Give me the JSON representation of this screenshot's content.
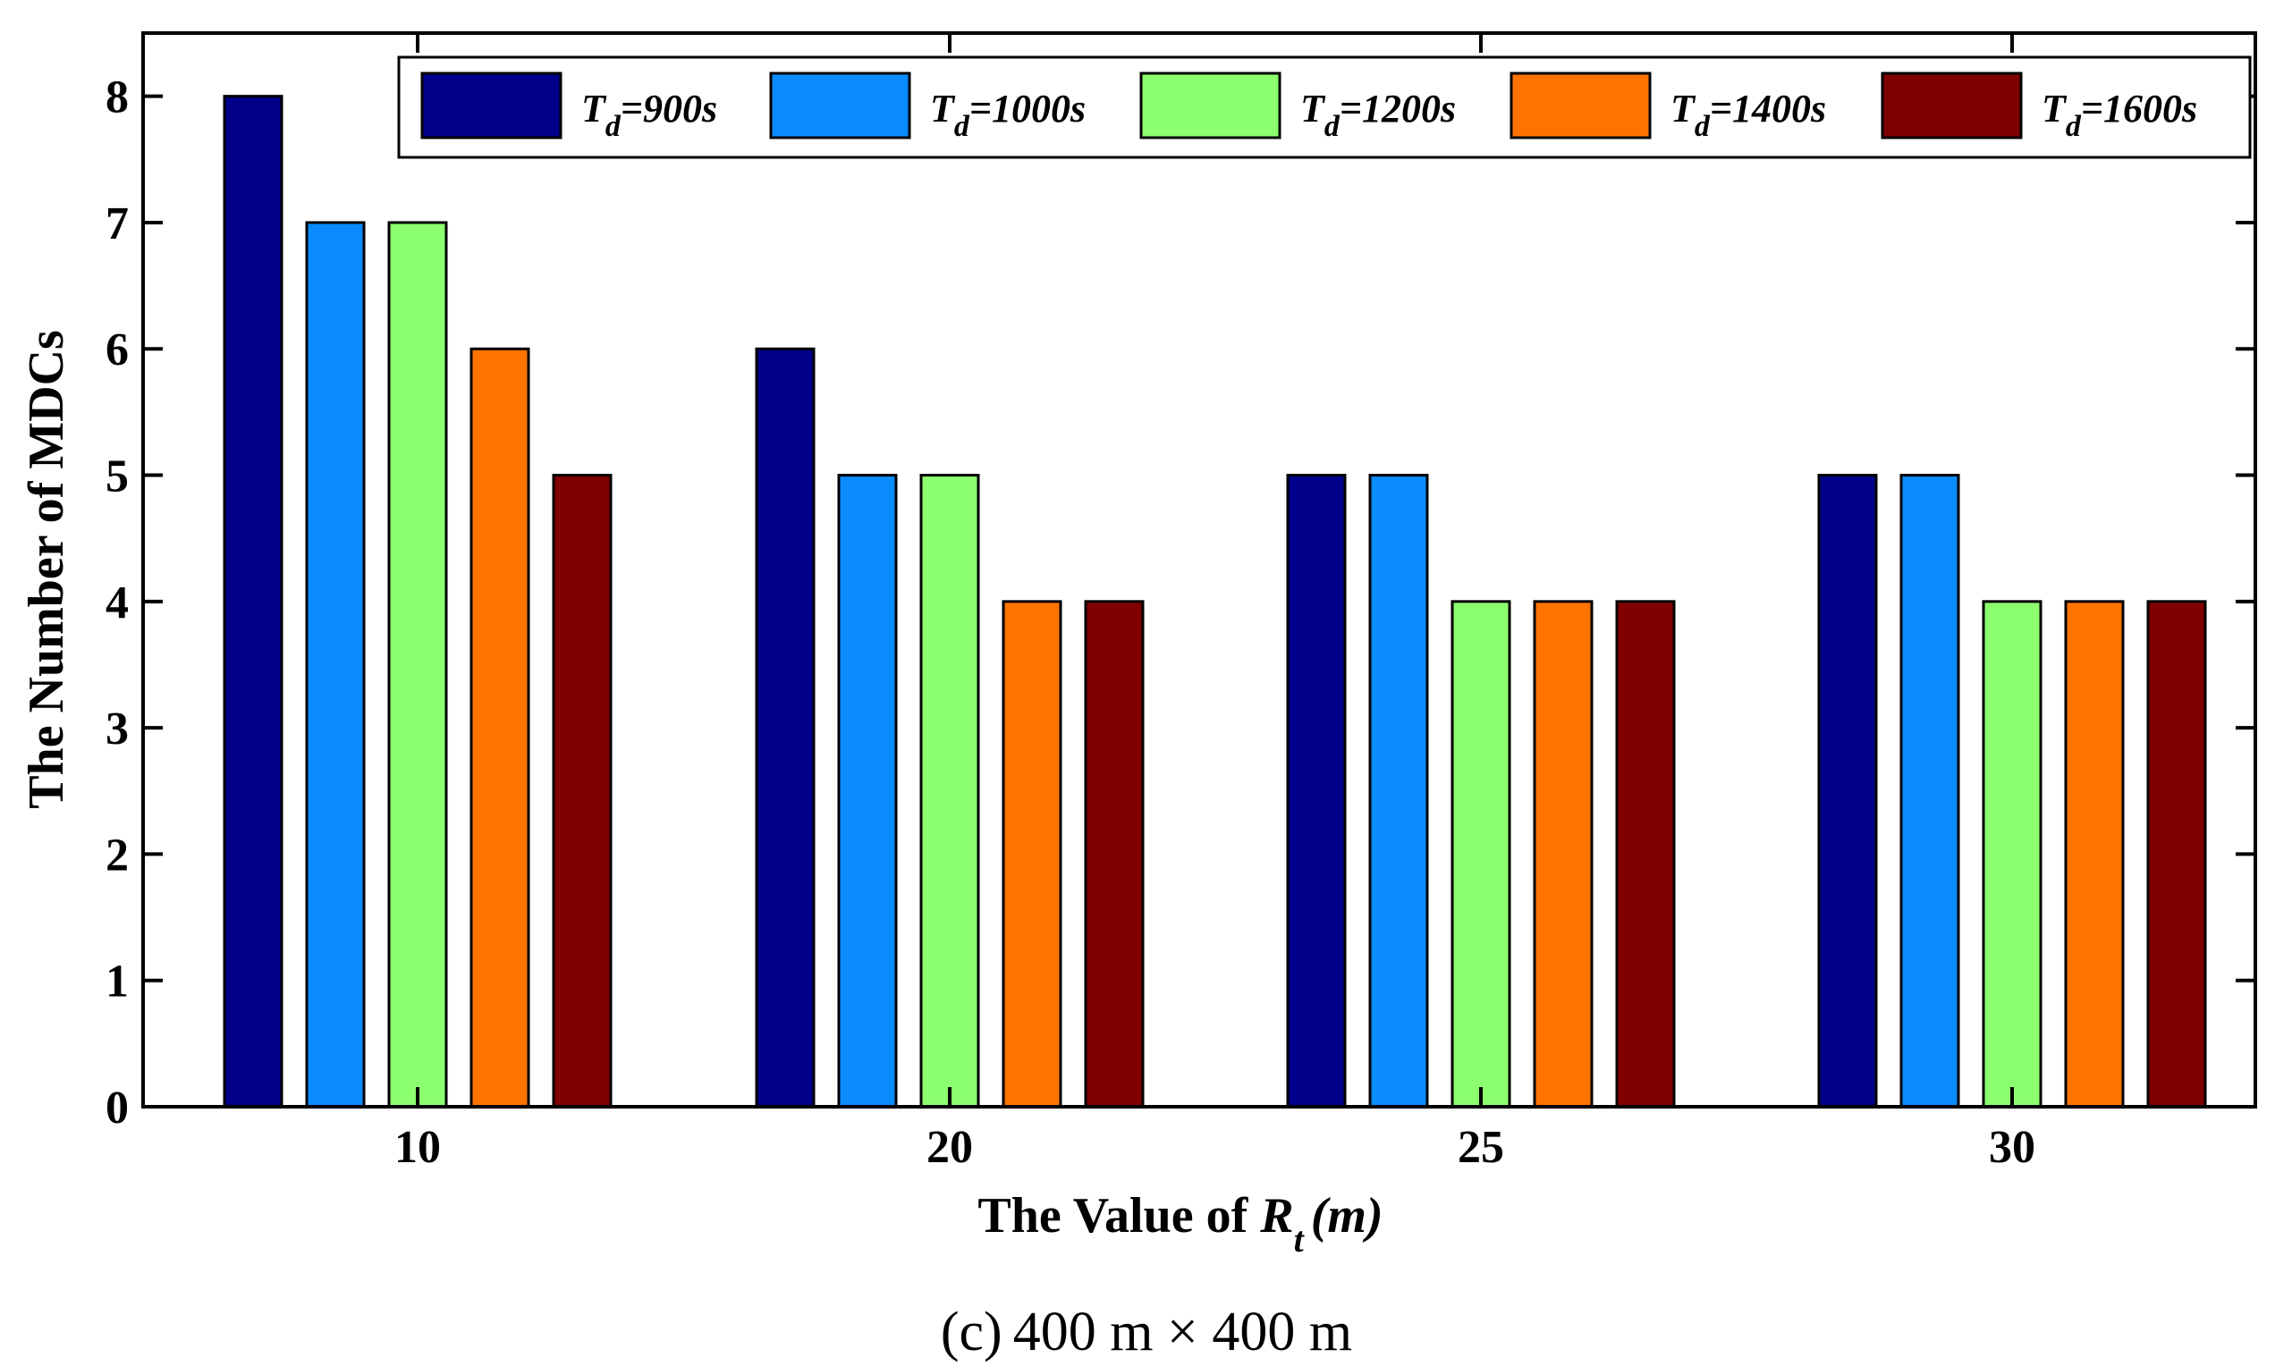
{
  "chart_data": {
    "type": "bar",
    "categories": [
      "10",
      "20",
      "25",
      "30"
    ],
    "series": [
      {
        "name": "900s",
        "color": "#00008B",
        "values": [
          8,
          6,
          5,
          5
        ]
      },
      {
        "name": "1000s",
        "color": "#0A8CFF",
        "values": [
          7,
          5,
          5,
          5
        ]
      },
      {
        "name": "1200s",
        "color": "#8CFF6E",
        "values": [
          7,
          5,
          4,
          4
        ]
      },
      {
        "name": "1400s",
        "color": "#FF7300",
        "values": [
          6,
          4,
          4,
          4
        ]
      },
      {
        "name": "1600s",
        "color": "#800000",
        "values": [
          5,
          4,
          4,
          4
        ]
      }
    ],
    "legend_prefix": "T",
    "legend_subscript": "d",
    "legend_separator": "=",
    "xlabel": {
      "text": "The Value of ",
      "symbol": "R",
      "subscript": "t",
      "unit": "(m)"
    },
    "ylabel": "The Number of MDCs",
    "yticks": [
      0,
      1,
      2,
      3,
      4,
      5,
      6,
      7,
      8
    ],
    "ylim": [
      0,
      8.5
    ],
    "legend_position": "top",
    "grid": false,
    "caption": {
      "label": "(c)",
      "text": "400 m × 400 m"
    }
  }
}
